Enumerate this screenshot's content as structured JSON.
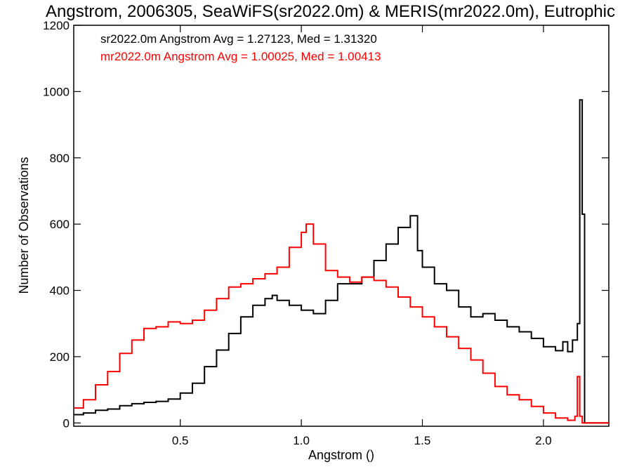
{
  "chart_data": {
    "type": "histogram",
    "title": "Angstrom, 2006305, SeaWiFS(sr2022.0m) & MERIS(mr2022.0m), Eutrophic",
    "xlabel": "Angstrom ()",
    "ylabel": "Number of Observations",
    "xlim": [
      0.06,
      2.27
    ],
    "ylim": [
      -10,
      1200
    ],
    "xticks": [
      0.5,
      1.0,
      1.5,
      2.0
    ],
    "xtick_labels": [
      "0.5",
      "1.0",
      "1.5",
      "2.0"
    ],
    "yticks": [
      0,
      200,
      400,
      600,
      800,
      1000,
      1200
    ],
    "ytick_labels": [
      "0",
      "200",
      "400",
      "600",
      "800",
      "1000",
      "1200"
    ],
    "grid": false,
    "annotations": [
      {
        "text": "sr2022.0m Angstrom Avg = 1.27123, Med = 1.31320",
        "color": "#000000"
      },
      {
        "text": "mr2022.0m Angstrom Avg = 1.00025, Med = 1.00413",
        "color": "#ff0000"
      }
    ],
    "series": [
      {
        "color": "#000000",
        "points": [
          [
            0.06,
            25
          ],
          [
            0.1,
            30
          ],
          [
            0.15,
            38
          ],
          [
            0.2,
            42
          ],
          [
            0.25,
            52
          ],
          [
            0.3,
            58
          ],
          [
            0.35,
            62
          ],
          [
            0.4,
            65
          ],
          [
            0.45,
            72
          ],
          [
            0.5,
            90
          ],
          [
            0.55,
            120
          ],
          [
            0.6,
            170
          ],
          [
            0.65,
            220
          ],
          [
            0.7,
            270
          ],
          [
            0.75,
            320
          ],
          [
            0.8,
            355
          ],
          [
            0.85,
            375
          ],
          [
            0.88,
            385
          ],
          [
            0.9,
            370
          ],
          [
            0.95,
            355
          ],
          [
            1.0,
            340
          ],
          [
            1.05,
            330
          ],
          [
            1.1,
            370
          ],
          [
            1.15,
            420
          ],
          [
            1.2,
            420
          ],
          [
            1.25,
            440
          ],
          [
            1.3,
            490
          ],
          [
            1.35,
            540
          ],
          [
            1.4,
            590
          ],
          [
            1.45,
            625
          ],
          [
            1.48,
            520
          ],
          [
            1.5,
            470
          ],
          [
            1.55,
            420
          ],
          [
            1.6,
            400
          ],
          [
            1.65,
            350
          ],
          [
            1.7,
            320
          ],
          [
            1.75,
            330
          ],
          [
            1.8,
            310
          ],
          [
            1.85,
            290
          ],
          [
            1.9,
            275
          ],
          [
            1.95,
            255
          ],
          [
            2.0,
            230
          ],
          [
            2.05,
            218
          ],
          [
            2.08,
            245
          ],
          [
            2.1,
            215
          ],
          [
            2.12,
            250
          ],
          [
            2.14,
            300
          ],
          [
            2.15,
            975
          ],
          [
            2.16,
            630
          ],
          [
            2.17,
            0
          ],
          [
            2.27,
            0
          ]
        ]
      },
      {
        "color": "#ff0000",
        "points": [
          [
            0.06,
            45
          ],
          [
            0.1,
            70
          ],
          [
            0.15,
            115
          ],
          [
            0.2,
            155
          ],
          [
            0.25,
            210
          ],
          [
            0.3,
            250
          ],
          [
            0.35,
            285
          ],
          [
            0.4,
            290
          ],
          [
            0.45,
            305
          ],
          [
            0.5,
            300
          ],
          [
            0.55,
            310
          ],
          [
            0.6,
            340
          ],
          [
            0.65,
            375
          ],
          [
            0.7,
            410
          ],
          [
            0.75,
            420
          ],
          [
            0.8,
            435
          ],
          [
            0.85,
            450
          ],
          [
            0.9,
            470
          ],
          [
            0.95,
            530
          ],
          [
            1.0,
            575
          ],
          [
            1.02,
            600
          ],
          [
            1.05,
            540
          ],
          [
            1.1,
            460
          ],
          [
            1.15,
            440
          ],
          [
            1.2,
            425
          ],
          [
            1.25,
            440
          ],
          [
            1.3,
            430
          ],
          [
            1.35,
            410
          ],
          [
            1.4,
            380
          ],
          [
            1.45,
            350
          ],
          [
            1.5,
            320
          ],
          [
            1.55,
            290
          ],
          [
            1.6,
            260
          ],
          [
            1.65,
            225
          ],
          [
            1.7,
            190
          ],
          [
            1.75,
            150
          ],
          [
            1.8,
            110
          ],
          [
            1.85,
            85
          ],
          [
            1.9,
            70
          ],
          [
            1.95,
            50
          ],
          [
            2.0,
            30
          ],
          [
            2.05,
            15
          ],
          [
            2.1,
            8
          ],
          [
            2.13,
            20
          ],
          [
            2.14,
            140
          ],
          [
            2.15,
            20
          ],
          [
            2.16,
            0
          ],
          [
            2.27,
            0
          ]
        ]
      }
    ]
  }
}
